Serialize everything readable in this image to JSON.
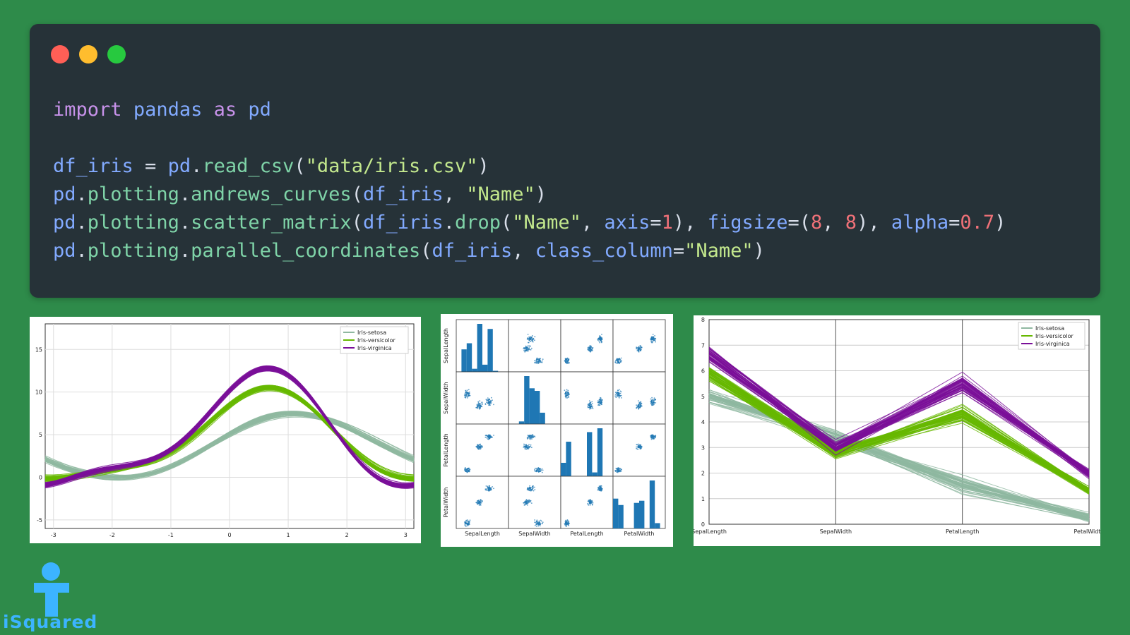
{
  "window_controls": {
    "close_color": "#ff5f56",
    "minimize_color": "#ffbd2e",
    "maximize_color": "#27c93f"
  },
  "code": {
    "language": "python",
    "lines": [
      "import pandas as pd",
      "",
      "df_iris = pd.read_csv(\"data/iris.csv\")",
      "pd.plotting.andrews_curves(df_iris, \"Name\")",
      "pd.plotting.scatter_matrix(df_iris.drop(\"Name\", axis=1), figsize=(8, 8), alpha=0.7)",
      "pd.plotting.parallel_coordinates(df_iris, class_column=\"Name\")"
    ]
  },
  "colors": {
    "background": "#2e8b4a",
    "setosa": "#8fb8a0",
    "versicolor": "#66b800",
    "virginica": "#7a0f99",
    "scatter": "#1f77b4"
  },
  "andrews_plot": {
    "x_ticks": [
      "-3",
      "-2",
      "-1",
      "0",
      "1",
      "2",
      "3"
    ],
    "y_ticks": [
      "-5",
      "0",
      "5",
      "10",
      "15"
    ],
    "legend": [
      "Iris-setosa",
      "Iris-versicolor",
      "Iris-virginica"
    ]
  },
  "scatter_matrix": {
    "columns": [
      "SepalLength",
      "SepalWidth",
      "PetalLength",
      "PetalWidth"
    ]
  },
  "parallel_plot": {
    "x_labels": [
      "SepalLength",
      "SepalWidth",
      "PetalLength",
      "PetalWidth"
    ],
    "y_ticks": [
      "0",
      "1",
      "2",
      "3",
      "4",
      "5",
      "6",
      "7",
      "8"
    ],
    "legend": [
      "Iris-setosa",
      "Iris-versicolor",
      "Iris-virginica"
    ]
  },
  "logo": {
    "text": "iSquared",
    "color": "#3cb4ff"
  }
}
